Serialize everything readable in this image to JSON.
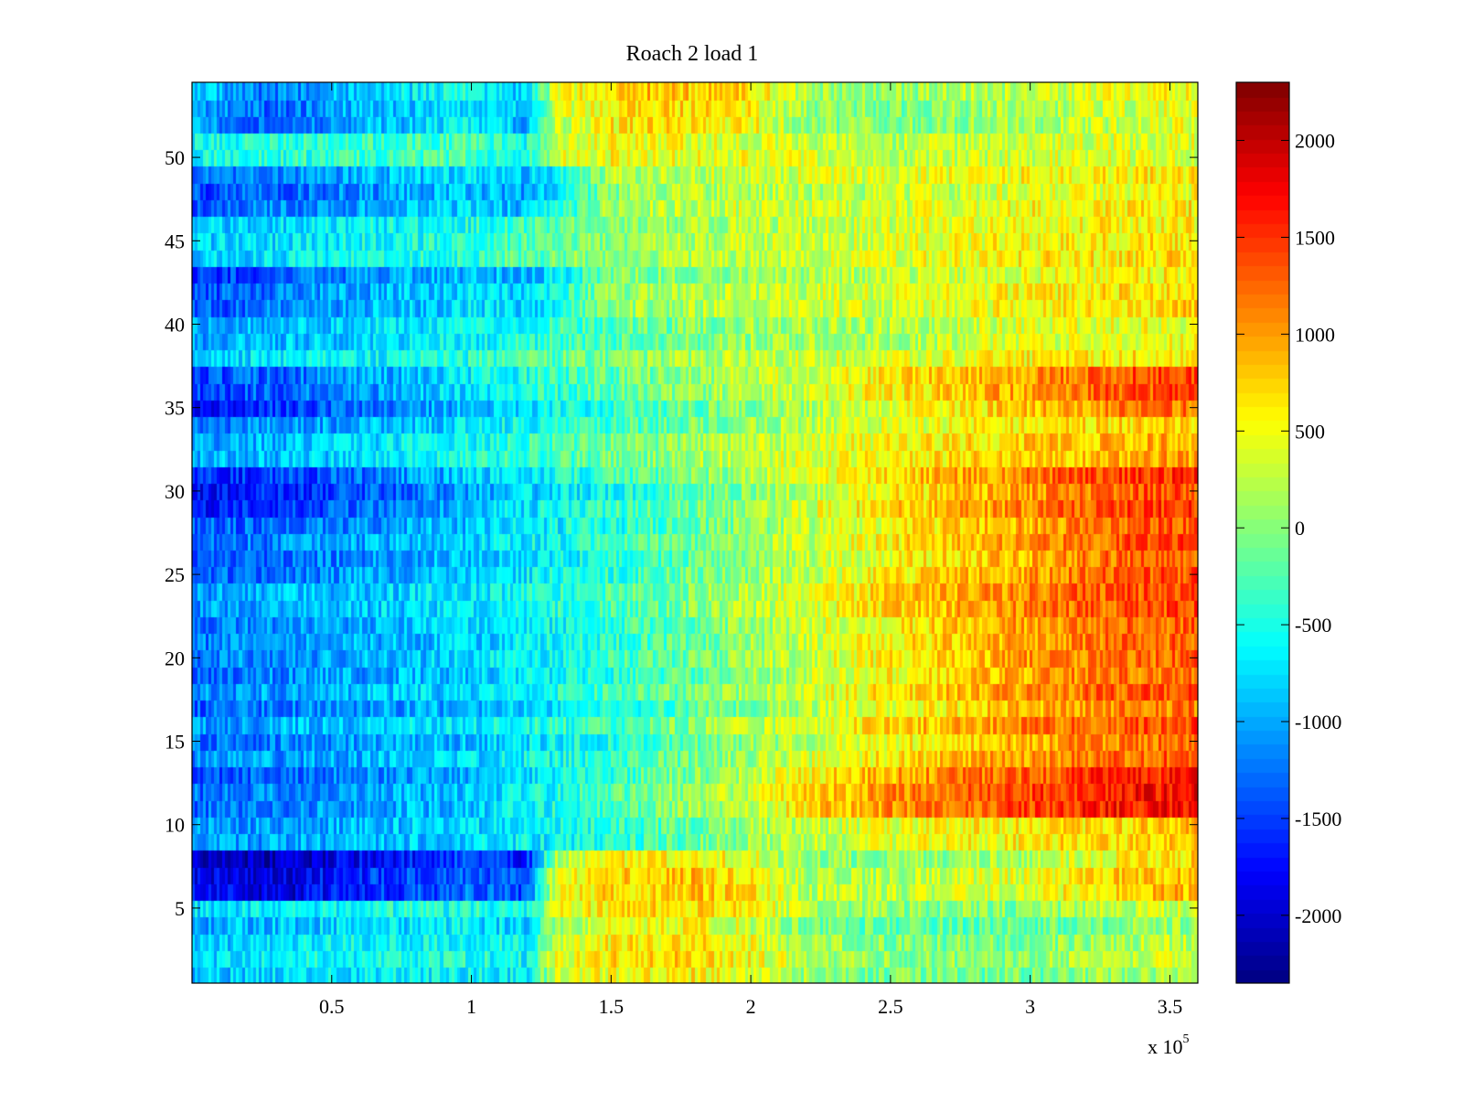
{
  "chart_data": {
    "type": "heatmap",
    "title": "Roach 2 load 1",
    "xlabel": "",
    "ylabel": "",
    "x_multiplier_label": "x 10",
    "x_multiplier_exponent": "5",
    "xlim": [
      0,
      3.6
    ],
    "ylim": [
      0.5,
      54.5
    ],
    "x_ticks": [
      0.5,
      1,
      1.5,
      2,
      2.5,
      3,
      3.5
    ],
    "x_tick_labels": [
      "0.5",
      "1",
      "1.5",
      "2",
      "2.5",
      "3",
      "3.5"
    ],
    "y_ticks": [
      5,
      10,
      15,
      20,
      25,
      30,
      35,
      40,
      45,
      50
    ],
    "y_tick_labels": [
      "5",
      "10",
      "15",
      "20",
      "25",
      "30",
      "35",
      "40",
      "45",
      "50"
    ],
    "rows": 54,
    "x_samples": 360,
    "colormap": "jet",
    "clim": [
      -2350,
      2300
    ],
    "colorbar_ticks": [
      2000,
      1500,
      1000,
      500,
      0,
      -500,
      -1000,
      -1500,
      -2000
    ],
    "colorbar_tick_labels": [
      "2000",
      "1500",
      "1000",
      "500",
      "0",
      "-500",
      "-1000",
      "-1500",
      "-2000"
    ],
    "trend_profiles": {
      "description": "Approximate mean values per x position (x in units of 10^5) for groups of rows; values in colorbar units",
      "groups": [
        {
          "name": "rows 1-5",
          "rows": [
            1,
            5
          ],
          "x": [
            0,
            0.5,
            1.0,
            1.2,
            1.3,
            1.5,
            1.8,
            2.0,
            2.2,
            2.5,
            3.0,
            3.3,
            3.6
          ],
          "v": [
            -900,
            -700,
            -600,
            -700,
            300,
            500,
            600,
            400,
            100,
            -100,
            -100,
            100,
            200
          ]
        },
        {
          "name": "rows 6-8",
          "rows": [
            6,
            8
          ],
          "x": [
            0,
            0.3,
            0.5,
            1.0,
            1.2,
            1.3,
            1.5,
            1.8,
            2.0,
            2.2,
            2.5,
            3.0,
            3.3,
            3.6
          ],
          "v": [
            -1900,
            -2100,
            -1800,
            -1400,
            -1600,
            300,
            600,
            700,
            500,
            100,
            100,
            300,
            600,
            800
          ]
        },
        {
          "name": "rows 9-10",
          "rows": [
            9,
            10
          ],
          "x": [
            0,
            0.5,
            1.0,
            1.5,
            2.0,
            2.5,
            3.0,
            3.6
          ],
          "v": [
            -1100,
            -1000,
            -800,
            -500,
            100,
            400,
            600,
            800
          ]
        },
        {
          "name": "rows 11-13",
          "rows": [
            11,
            13
          ],
          "x": [
            0,
            0.5,
            1.0,
            1.5,
            2.0,
            2.3,
            2.5,
            3.0,
            3.3,
            3.6
          ],
          "v": [
            -1300,
            -1100,
            -900,
            -300,
            300,
            800,
            1000,
            1400,
            1600,
            1700
          ]
        },
        {
          "name": "rows 14-24",
          "rows": [
            14,
            24
          ],
          "x": [
            0,
            0.5,
            1.0,
            1.5,
            2.0,
            2.5,
            3.0,
            3.3,
            3.6
          ],
          "v": [
            -1200,
            -1000,
            -800,
            -400,
            100,
            600,
            1000,
            1200,
            1300
          ]
        },
        {
          "name": "rows 25-28",
          "rows": [
            25,
            28
          ],
          "x": [
            0,
            0.5,
            1.0,
            1.5,
            2.0,
            2.5,
            3.0,
            3.3,
            3.6
          ],
          "v": [
            -1300,
            -1100,
            -800,
            -400,
            100,
            600,
            1000,
            1300,
            1400
          ]
        },
        {
          "name": "rows 29-31",
          "rows": [
            29,
            31
          ],
          "x": [
            0,
            0.5,
            1.0,
            1.5,
            2.0,
            2.5,
            3.0,
            3.3,
            3.6
          ],
          "v": [
            -1700,
            -1400,
            -900,
            -400,
            100,
            700,
            1100,
            1400,
            1500
          ]
        },
        {
          "name": "rows 32-34",
          "rows": [
            32,
            34
          ],
          "x": [
            0,
            0.5,
            1.0,
            1.5,
            2.0,
            2.5,
            3.0,
            3.6
          ],
          "v": [
            -1100,
            -900,
            -600,
            -200,
            200,
            500,
            700,
            900
          ]
        },
        {
          "name": "rows 35-37",
          "rows": [
            35,
            37
          ],
          "x": [
            0,
            0.5,
            1.0,
            1.5,
            2.0,
            2.5,
            3.0,
            3.3,
            3.6
          ],
          "v": [
            -1600,
            -1300,
            -800,
            -300,
            100,
            500,
            900,
            1200,
            1300
          ]
        },
        {
          "name": "rows 38-40",
          "rows": [
            38,
            40
          ],
          "x": [
            0,
            0.5,
            1.0,
            1.5,
            2.0,
            2.5,
            3.0,
            3.6
          ],
          "v": [
            -900,
            -700,
            -500,
            -100,
            200,
            300,
            500,
            600
          ]
        },
        {
          "name": "rows 41-43",
          "rows": [
            41,
            43
          ],
          "x": [
            0,
            0.5,
            1.0,
            1.2,
            1.5,
            2.0,
            2.5,
            3.0,
            3.6
          ],
          "v": [
            -1500,
            -1100,
            -800,
            -900,
            0,
            200,
            300,
            500,
            700
          ]
        },
        {
          "name": "rows 44-46",
          "rows": [
            44,
            46
          ],
          "x": [
            0,
            0.5,
            1.0,
            1.5,
            2.0,
            2.5,
            3.0,
            3.6
          ],
          "v": [
            -900,
            -700,
            -500,
            0,
            200,
            300,
            500,
            600
          ]
        },
        {
          "name": "rows 47-49",
          "rows": [
            47,
            49
          ],
          "x": [
            0,
            0.5,
            1.0,
            1.2,
            1.5,
            2.0,
            2.5,
            3.0,
            3.6
          ],
          "v": [
            -1400,
            -1100,
            -800,
            -1000,
            100,
            300,
            300,
            500,
            600
          ]
        },
        {
          "name": "rows 50-51",
          "rows": [
            50,
            51
          ],
          "x": [
            0,
            0.5,
            1.0,
            1.2,
            1.3,
            1.5,
            2.0,
            2.5,
            3.0,
            3.6
          ],
          "v": [
            -600,
            -400,
            -300,
            -500,
            300,
            500,
            400,
            200,
            300,
            400
          ]
        },
        {
          "name": "rows 52-54",
          "rows": [
            52,
            54
          ],
          "x": [
            0,
            0.3,
            0.5,
            1.0,
            1.2,
            1.3,
            1.6,
            2.0,
            2.2,
            2.5,
            3.0,
            3.6
          ],
          "v": [
            -900,
            -1300,
            -1000,
            -600,
            -900,
            300,
            800,
            600,
            100,
            0,
            200,
            500
          ]
        }
      ]
    }
  }
}
